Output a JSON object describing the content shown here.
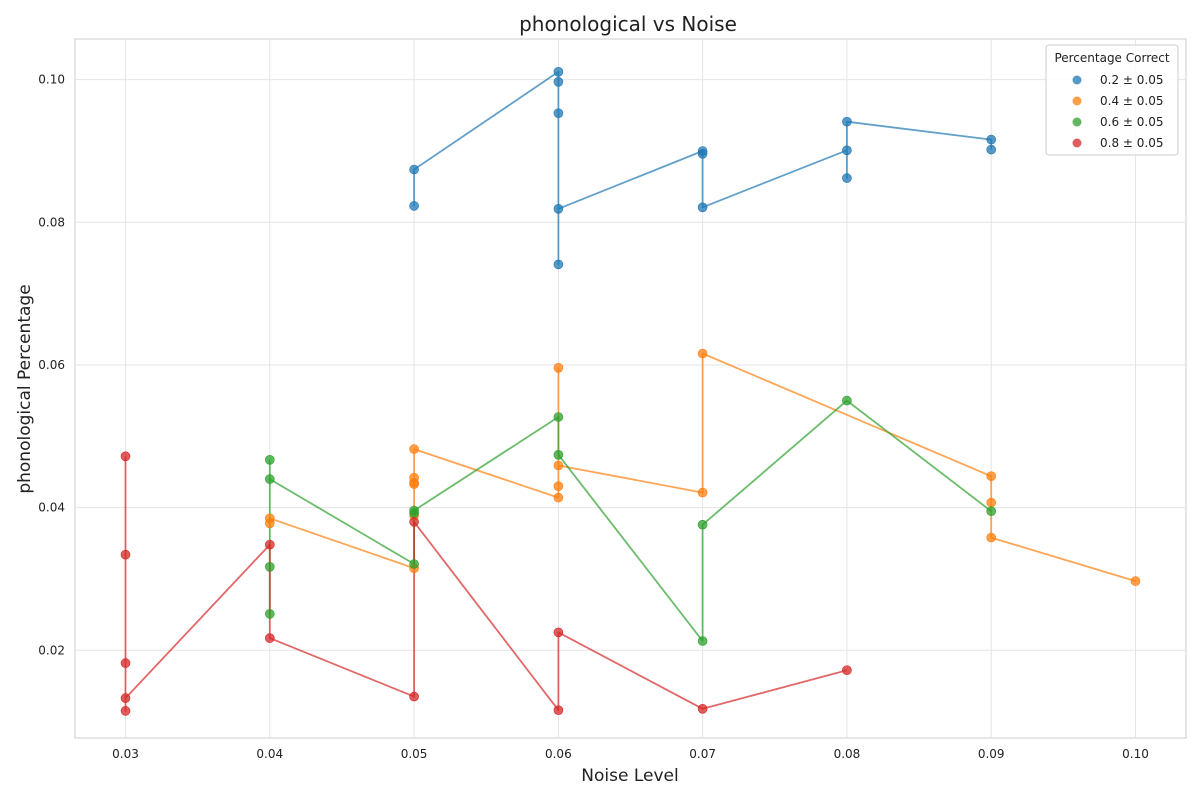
{
  "chart_data": {
    "type": "scatter",
    "title": "phonological vs Noise",
    "xlabel": "Noise Level",
    "ylabel": "phonological Percentage",
    "xlim": [
      0.0265,
      0.1035
    ],
    "ylim": [
      0.0077,
      0.1057
    ],
    "xticks": [
      "0.03",
      "0.04",
      "0.05",
      "0.06",
      "0.07",
      "0.08",
      "0.09",
      "0.10"
    ],
    "yticks": [
      "0.02",
      "0.04",
      "0.06",
      "0.08",
      "0.10"
    ],
    "grid": true,
    "legend": {
      "title": "Percentage Correct",
      "position": "top-right"
    },
    "series": [
      {
        "name": "0.2 ± 0.05",
        "color": "#1f77b4",
        "points": [
          [
            0.05,
            0.0823
          ],
          [
            0.05,
            0.0874
          ],
          [
            0.06,
            0.1011
          ],
          [
            0.06,
            0.0997
          ],
          [
            0.06,
            0.0953
          ],
          [
            0.06,
            0.0741
          ],
          [
            0.06,
            0.0819
          ],
          [
            0.07,
            0.09
          ],
          [
            0.07,
            0.0896
          ],
          [
            0.07,
            0.0821
          ],
          [
            0.08,
            0.0901
          ],
          [
            0.08,
            0.0862
          ],
          [
            0.08,
            0.0941
          ],
          [
            0.09,
            0.0916
          ],
          [
            0.09,
            0.0902
          ]
        ]
      },
      {
        "name": "0.4 ± 0.05",
        "color": "#ff7f0e",
        "points": [
          [
            0.04,
            0.0378
          ],
          [
            0.04,
            0.0385
          ],
          [
            0.05,
            0.0315
          ],
          [
            0.05,
            0.0389
          ],
          [
            0.05,
            0.0433
          ],
          [
            0.05,
            0.0435
          ],
          [
            0.05,
            0.0442
          ],
          [
            0.05,
            0.0482
          ],
          [
            0.06,
            0.0414
          ],
          [
            0.06,
            0.043
          ],
          [
            0.06,
            0.0596
          ],
          [
            0.06,
            0.0459
          ],
          [
            0.07,
            0.0421
          ],
          [
            0.07,
            0.0616
          ],
          [
            0.09,
            0.0444
          ],
          [
            0.09,
            0.0407
          ],
          [
            0.09,
            0.0358
          ],
          [
            0.1,
            0.0297
          ]
        ]
      },
      {
        "name": "0.6 ± 0.05",
        "color": "#2ca02c",
        "points": [
          [
            0.04,
            0.0467
          ],
          [
            0.04,
            0.0251
          ],
          [
            0.04,
            0.0317
          ],
          [
            0.04,
            0.044
          ],
          [
            0.05,
            0.0321
          ],
          [
            0.05,
            0.0392
          ],
          [
            0.05,
            0.0396
          ],
          [
            0.06,
            0.0527
          ],
          [
            0.06,
            0.0474
          ],
          [
            0.07,
            0.0213
          ],
          [
            0.07,
            0.0376
          ],
          [
            0.08,
            0.055
          ],
          [
            0.09,
            0.0395
          ]
        ]
      },
      {
        "name": "0.8 ± 0.05",
        "color": "#d62728",
        "points": [
          [
            0.03,
            0.0472
          ],
          [
            0.03,
            0.0334
          ],
          [
            0.03,
            0.0115
          ],
          [
            0.03,
            0.0182
          ],
          [
            0.03,
            0.0133
          ],
          [
            0.04,
            0.0348
          ],
          [
            0.04,
            0.0217
          ],
          [
            0.05,
            0.0135
          ],
          [
            0.05,
            0.038
          ],
          [
            0.06,
            0.0116
          ],
          [
            0.06,
            0.0225
          ],
          [
            0.07,
            0.0118
          ],
          [
            0.08,
            0.0172
          ]
        ]
      }
    ]
  }
}
